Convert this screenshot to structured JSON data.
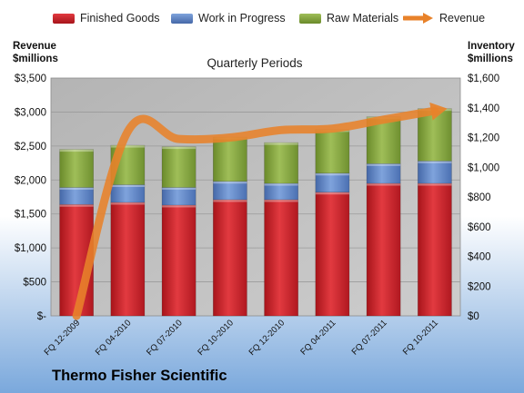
{
  "chart_data": {
    "type": "bar",
    "stacked": true,
    "title": "Quarterly Periods",
    "categories": [
      "FQ 12-2009",
      "FQ 04-2010",
      "FQ 07-2010",
      "FQ 10-2010",
      "FQ 12-2010",
      "FQ 04-2011",
      "FQ 07-2011",
      "FQ 10-2011"
    ],
    "series": [
      {
        "name": "Finished Goods",
        "axis": "left",
        "color": "#d9262e",
        "values": [
          1640,
          1670,
          1630,
          1710,
          1710,
          1820,
          1950,
          1950
        ]
      },
      {
        "name": "Work in Progress",
        "axis": "left",
        "color": "#5b83c4",
        "values": [
          250,
          260,
          260,
          270,
          240,
          280,
          290,
          330
        ]
      },
      {
        "name": "Raw Materials",
        "axis": "left",
        "color": "#88a840",
        "values": [
          560,
          580,
          600,
          650,
          600,
          640,
          690,
          770
        ]
      },
      {
        "name": "Revenue",
        "type": "line",
        "axis": "right",
        "color": "#e8822a",
        "values": [
          0,
          1240,
          1190,
          1200,
          1250,
          1260,
          1320,
          1380
        ]
      }
    ],
    "ylabel": "Revenue $millions",
    "y2label": "Inventory $millions",
    "ylim": [
      0,
      3500
    ],
    "y2lim": [
      0,
      1600
    ],
    "y_ticks": [
      "$-",
      "$500",
      "$1,000",
      "$1,500",
      "$2,000",
      "$2,500",
      "$3,000",
      "$3,500"
    ],
    "y2_ticks": [
      "$0",
      "$200",
      "$400",
      "$600",
      "$800",
      "$1,000",
      "$1,200",
      "$1,400",
      "$1,600"
    ],
    "grid": true,
    "legend": "top",
    "colors": {
      "plot_background": "#c0c0c0",
      "gridline": "#9a9a9a",
      "page_top": "#ffffff",
      "page_bottom": "#7aa8dc"
    }
  },
  "company": "Thermo Fisher Scientific",
  "y_title": [
    "Revenue",
    "$millions"
  ],
  "y2_title": [
    "Inventory",
    "$millions"
  ]
}
